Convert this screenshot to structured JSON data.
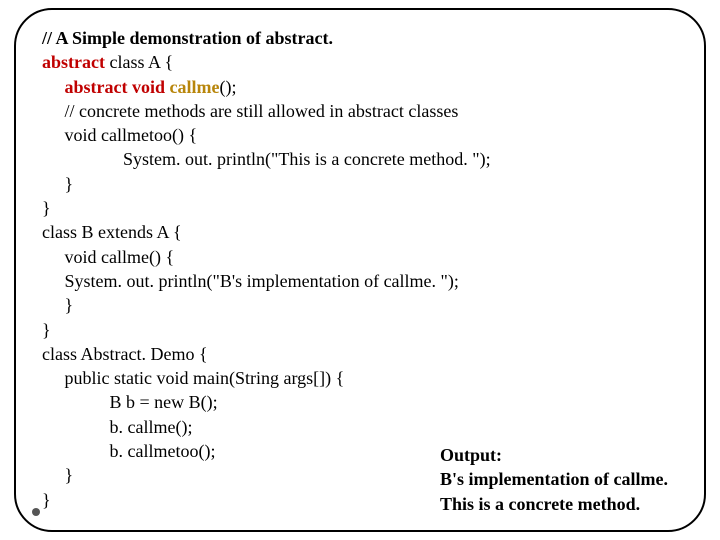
{
  "colors": {
    "keyword": "#c00000",
    "methodname": "#b8860b",
    "text": "#000000",
    "background": "#ffffff",
    "border": "#000000"
  },
  "typography": {
    "font_family": "Times New Roman",
    "code_fontsize_pt": 14,
    "output_fontsize_pt": 14,
    "bold_weight": 700
  },
  "code": {
    "l1_comment": "// A Simple demonstration of abstract.",
    "l2_kw": "abstract",
    "l2_rest": " class A {",
    "l3_indent": "     ",
    "l3_kw1": "abstract",
    "l3_sp": " ",
    "l3_kw2": "void",
    "l3_sp2": " ",
    "l3_method": "callme",
    "l3_rest": "();",
    "l4": "     // concrete methods are still allowed in abstract classes",
    "l5": "     void callmetoo() {",
    "l6": "                  System. out. println(\"This is a concrete method. \");",
    "l7": "     }",
    "l8": "}",
    "l9": "class B extends A {",
    "l10": "     void callme() {",
    "l11": "     System. out. println(\"B's implementation of callme. \");",
    "l12": "     }",
    "l13": "}",
    "l14": "class Abstract. Demo {",
    "l15": "     public static void main(String args[]) {",
    "l16": "               B b = new B();",
    "l17": "               b. callme();",
    "l18": "               b. callmetoo();",
    "l19": "     }",
    "l20": "}"
  },
  "output": {
    "title": "Output:",
    "line1": "B's implementation of callme.",
    "line2": "This is a concrete method."
  }
}
